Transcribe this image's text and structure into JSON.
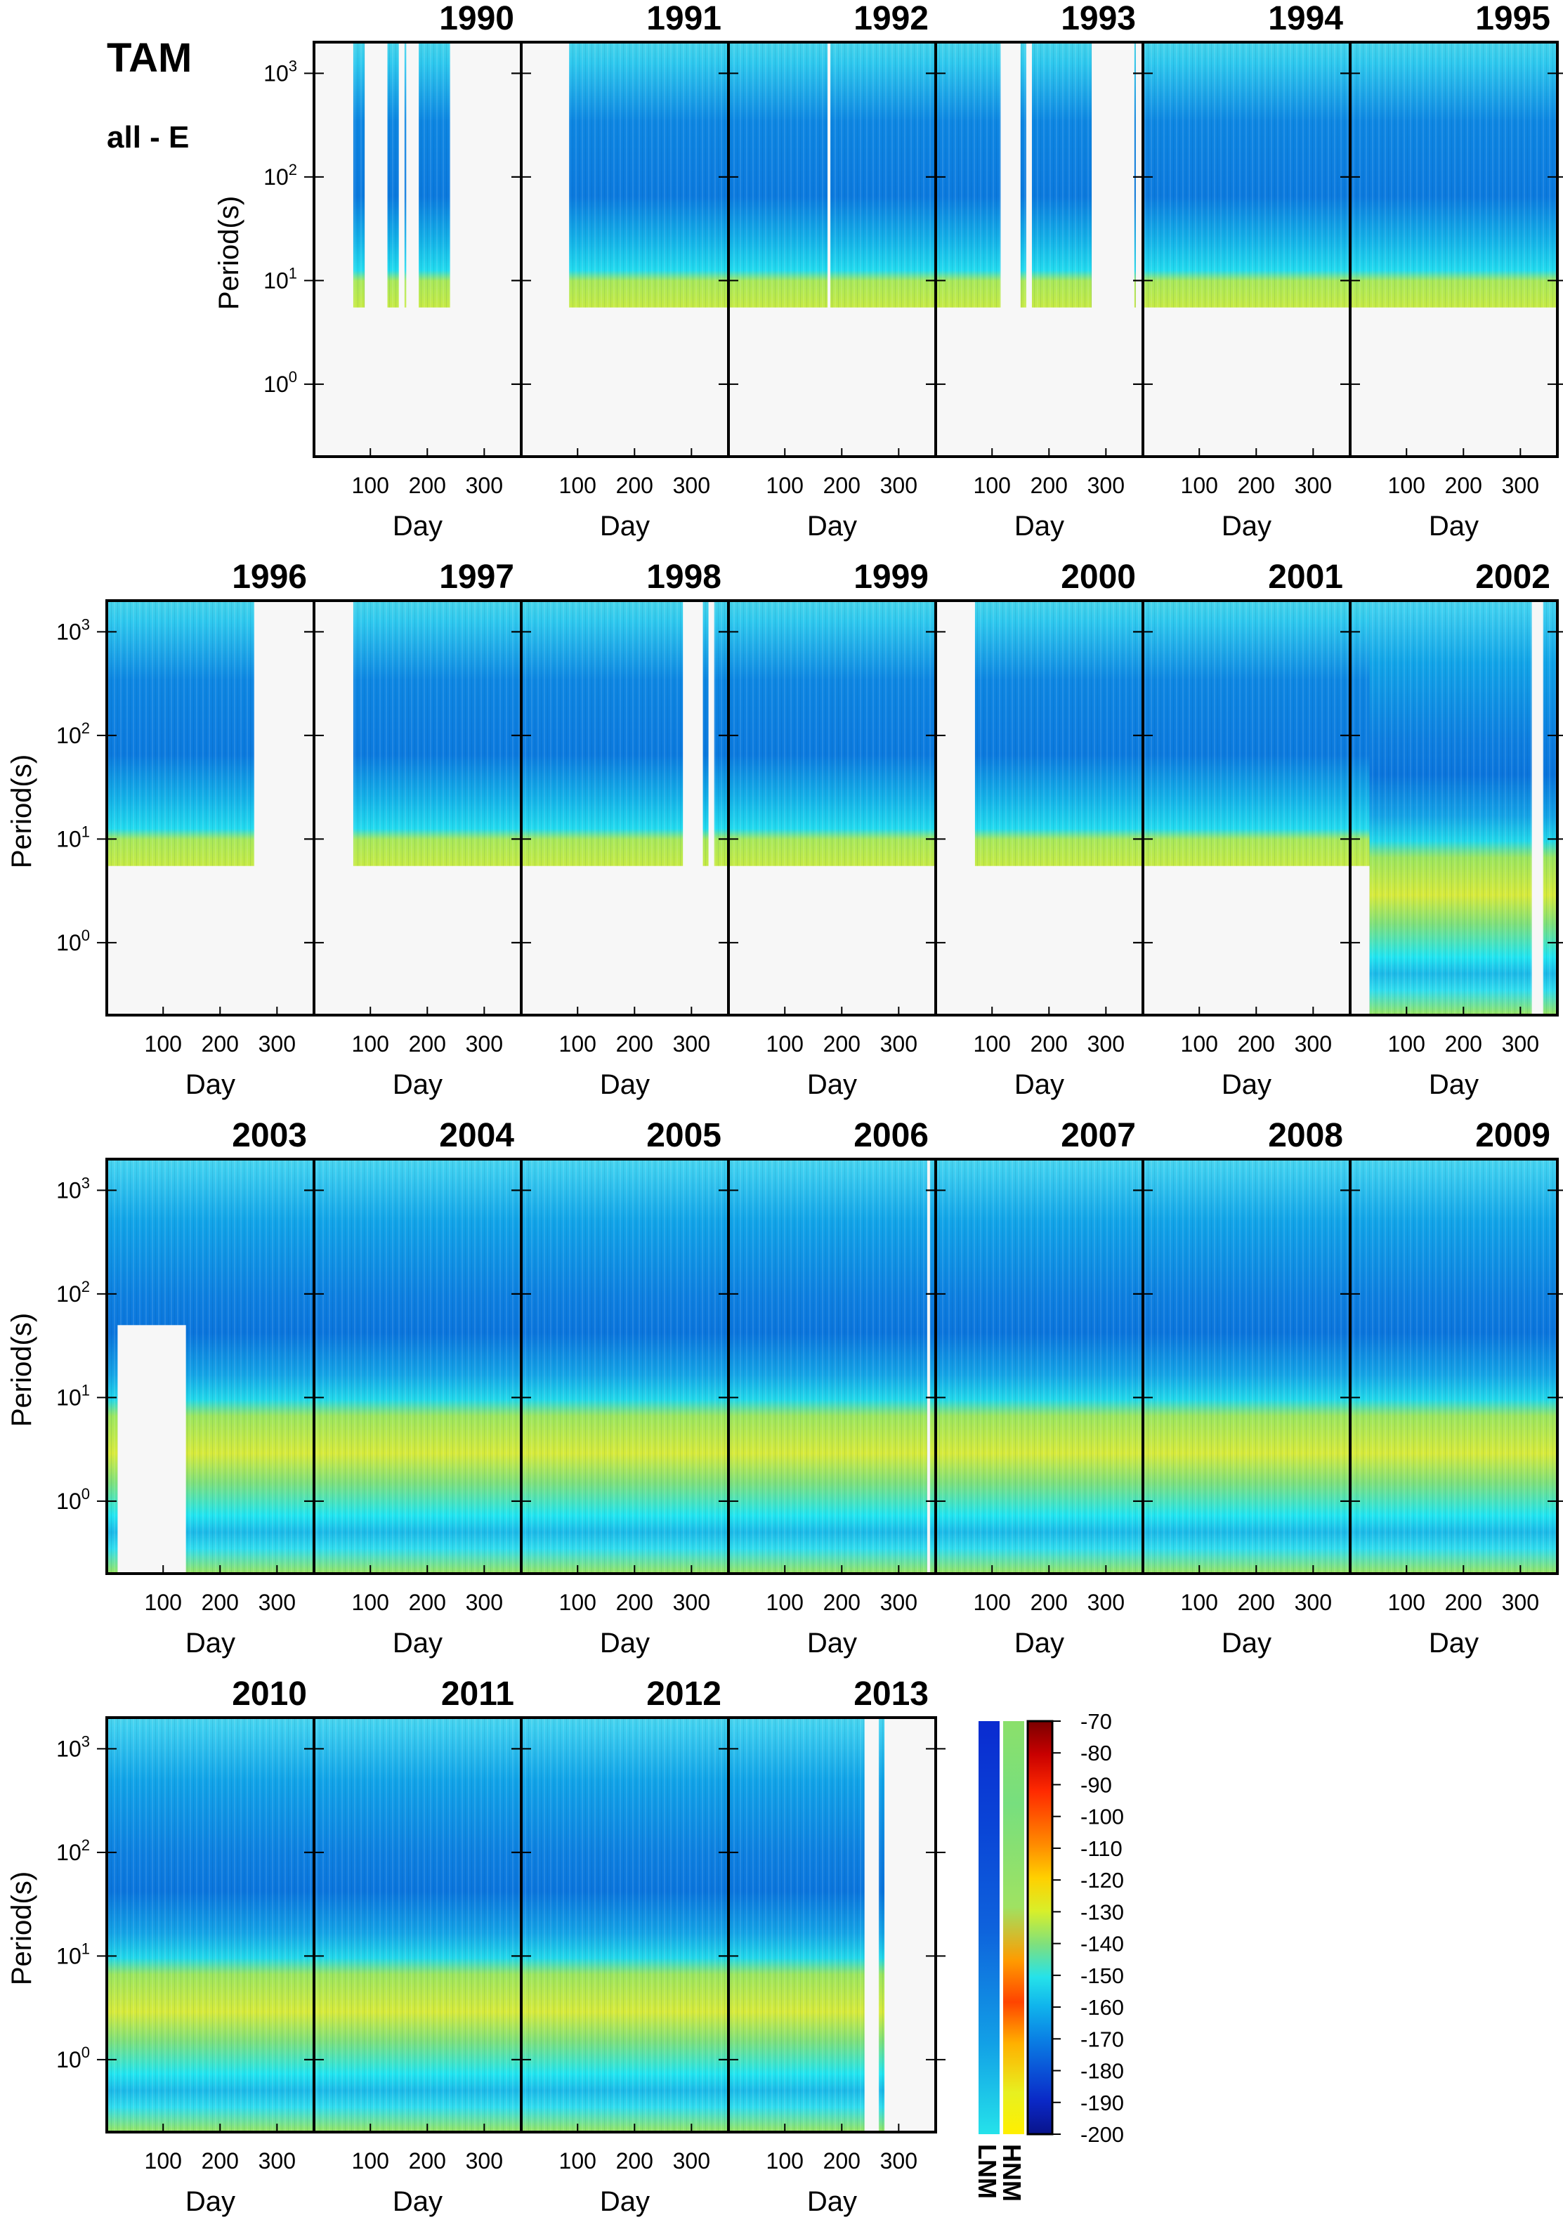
{
  "header": {
    "station": "TAM",
    "component": "all - E"
  },
  "chart_data": {
    "type": "heatmap",
    "station": "TAM",
    "component": "all - E",
    "xlabel": "Day",
    "ylabel": "Period(s)",
    "x_ticks": [
      "100",
      "200",
      "300"
    ],
    "y_scale": "log",
    "y_ticks": [
      {
        "base": "10",
        "exp": "0"
      },
      {
        "base": "10",
        "exp": "1"
      },
      {
        "base": "10",
        "exp": "2"
      },
      {
        "base": "10",
        "exp": "3"
      }
    ],
    "y_range_s": [
      0.2,
      2000
    ],
    "colorbar": {
      "min": -200,
      "max": -70,
      "ticks": [
        "-70",
        "-80",
        "-90",
        "-100",
        "-110",
        "-120",
        "-130",
        "-140",
        "-150",
        "-160",
        "-170",
        "-180",
        "-190",
        "-200"
      ],
      "reference_labels": [
        "LNM",
        "HNM"
      ]
    },
    "panels": [
      {
        "year": "1990",
        "period_min_s": 5.5,
        "data_days": [
          [
            70,
            90
          ],
          [
            130,
            150
          ],
          [
            160,
            163
          ],
          [
            185,
            240
          ]
        ]
      },
      {
        "year": "1991",
        "period_min_s": 5.5,
        "data_days": [
          [
            85,
            365
          ]
        ]
      },
      {
        "year": "1992",
        "period_min_s": 5.5,
        "data_days": [
          [
            1,
            175
          ],
          [
            180,
            365
          ]
        ]
      },
      {
        "year": "1993",
        "period_min_s": 5.5,
        "data_days": [
          [
            1,
            115
          ],
          [
            150,
            160
          ],
          [
            170,
            275
          ],
          [
            350,
            352
          ]
        ]
      },
      {
        "year": "1994",
        "period_min_s": 5.5,
        "data_days": [
          [
            1,
            365
          ]
        ]
      },
      {
        "year": "1995",
        "period_min_s": 5.5,
        "data_days": [
          [
            1,
            365
          ]
        ]
      },
      {
        "year": "1996",
        "period_min_s": 5.5,
        "data_days": [
          [
            1,
            260
          ]
        ]
      },
      {
        "year": "1997",
        "period_min_s": 5.5,
        "data_days": [
          [
            70,
            365
          ]
        ]
      },
      {
        "year": "1998",
        "period_min_s": 5.5,
        "data_days": [
          [
            1,
            285
          ],
          [
            320,
            330
          ],
          [
            340,
            365
          ]
        ]
      },
      {
        "year": "1999",
        "period_min_s": 5.5,
        "data_days": [
          [
            1,
            365
          ]
        ]
      },
      {
        "year": "2000",
        "period_min_s": 5.5,
        "data_days": [
          [
            70,
            365
          ]
        ]
      },
      {
        "year": "2001",
        "period_min_s": 5.5,
        "data_days": [
          [
            1,
            365
          ]
        ]
      },
      {
        "year": "2002",
        "period_min_s": 5.5,
        "data_days": [
          [
            1,
            35
          ],
          [
            35,
            320
          ],
          [
            340,
            365
          ]
        ],
        "short_period_from_day": 35
      },
      {
        "year": "2003",
        "period_min_s": 0.2,
        "data_days": [
          [
            1,
            365
          ]
        ],
        "gap_days": [
          [
            20,
            140
          ]
        ]
      },
      {
        "year": "2004",
        "period_min_s": 0.2,
        "data_days": [
          [
            1,
            365
          ]
        ]
      },
      {
        "year": "2005",
        "period_min_s": 0.2,
        "data_days": [
          [
            1,
            365
          ]
        ]
      },
      {
        "year": "2006",
        "period_min_s": 0.2,
        "data_days": [
          [
            1,
            350
          ],
          [
            355,
            365
          ]
        ]
      },
      {
        "year": "2007",
        "period_min_s": 0.2,
        "data_days": [
          [
            1,
            365
          ]
        ]
      },
      {
        "year": "2008",
        "period_min_s": 0.2,
        "data_days": [
          [
            1,
            365
          ]
        ]
      },
      {
        "year": "2009",
        "period_min_s": 0.2,
        "data_days": [
          [
            1,
            365
          ]
        ]
      },
      {
        "year": "2010",
        "period_min_s": 0.2,
        "data_days": [
          [
            1,
            365
          ]
        ]
      },
      {
        "year": "2011",
        "period_min_s": 0.2,
        "data_days": [
          [
            1,
            365
          ]
        ]
      },
      {
        "year": "2012",
        "period_min_s": 0.2,
        "data_days": [
          [
            1,
            365
          ]
        ]
      },
      {
        "year": "2013",
        "period_min_s": 0.2,
        "data_days": [
          [
            1,
            240
          ],
          [
            265,
            275
          ]
        ]
      }
    ]
  }
}
